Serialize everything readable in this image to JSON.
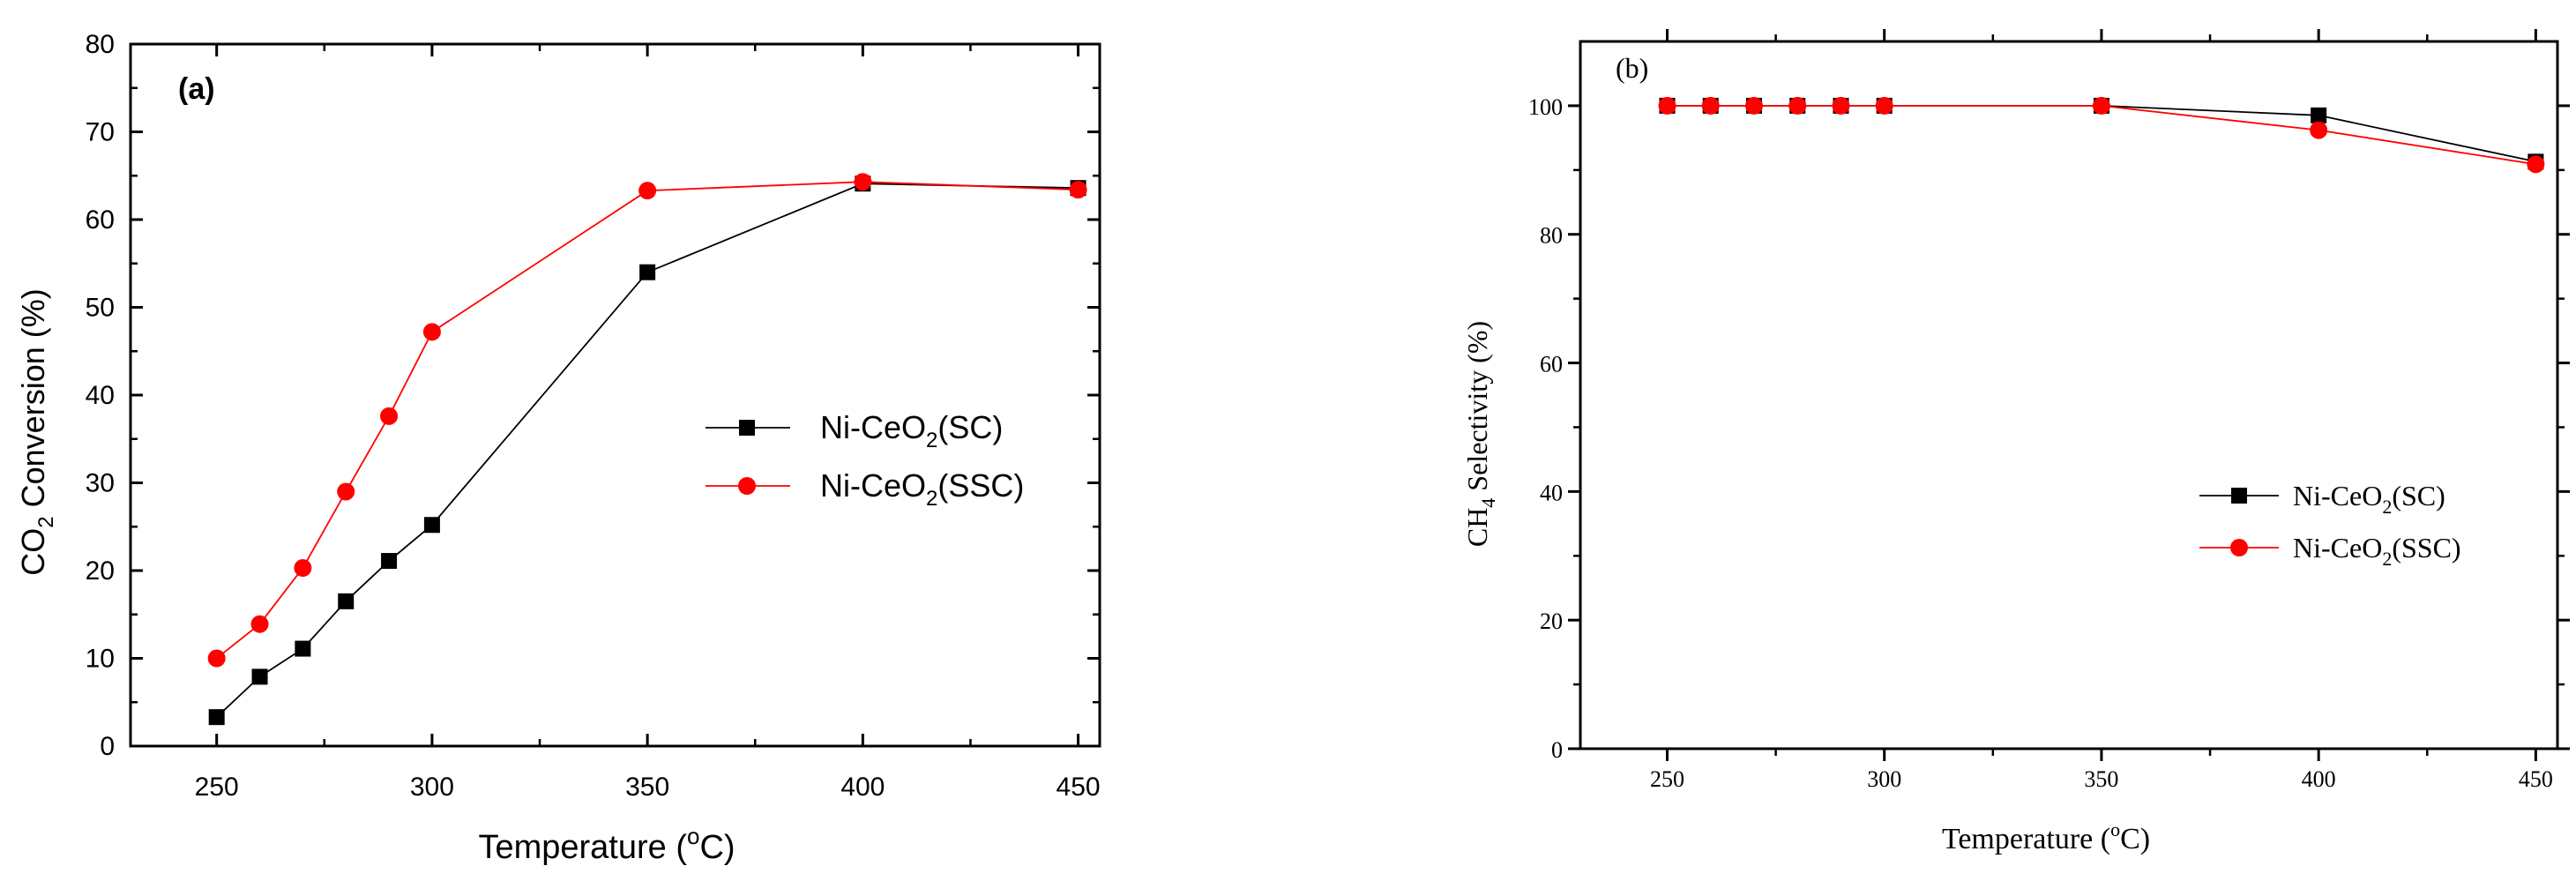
{
  "colors": {
    "sc": "#000000",
    "ssc": "#ff0000"
  },
  "chart_data": [
    {
      "type": "line",
      "panel_label": "(a)",
      "xlabel_text": "Temperature (",
      "xlabel_sup": "o",
      "xlabel_end": "C)",
      "ylabel_pre": "CO",
      "ylabel_sub": "2",
      "ylabel_post": " Conversion (%)",
      "xlim": [
        230,
        455
      ],
      "ylim": [
        0,
        80
      ],
      "xticks": [
        250,
        300,
        350,
        400,
        450
      ],
      "yticks": [
        0,
        10,
        20,
        30,
        40,
        50,
        60,
        70,
        80
      ],
      "legend_position": "center-right",
      "series": [
        {
          "name": "Ni-CeO2(SC)",
          "name_pre": "Ni-CeO",
          "name_sub": "2",
          "name_post": "(SC)",
          "marker": "square",
          "color": "#000000",
          "x": [
            250,
            260,
            270,
            280,
            290,
            300,
            350,
            400,
            450
          ],
          "y": [
            3.3,
            7.9,
            11.1,
            16.5,
            21.1,
            25.2,
            54.0,
            64.1,
            63.6
          ]
        },
        {
          "name": "Ni-CeO2(SSC)",
          "name_pre": "Ni-CeO",
          "name_sub": "2",
          "name_post": "(SSC)",
          "marker": "circle",
          "color": "#ff0000",
          "x": [
            250,
            260,
            270,
            280,
            290,
            300,
            350,
            400,
            450
          ],
          "y": [
            10.0,
            13.9,
            20.3,
            29.0,
            37.6,
            47.2,
            63.3,
            64.3,
            63.4
          ]
        }
      ]
    },
    {
      "type": "line",
      "panel_label": "(b)",
      "xlabel_text": "Temperature (",
      "xlabel_sup": "o",
      "xlabel_end": "C)",
      "ylabel_pre": "CH",
      "ylabel_sub": "4",
      "ylabel_post": " Selectivity (%)",
      "xlim": [
        230,
        455
      ],
      "ylim": [
        0,
        110
      ],
      "xticks": [
        250,
        300,
        350,
        400,
        450
      ],
      "yticks": [
        0,
        20,
        40,
        60,
        80,
        100
      ],
      "legend_position": "lower-right",
      "series": [
        {
          "name": "Ni-CeO2(SC)",
          "name_pre": "Ni-CeO",
          "name_sub": "2",
          "name_post": "(SC)",
          "marker": "square",
          "color": "#000000",
          "x": [
            250,
            260,
            270,
            280,
            290,
            300,
            350,
            400,
            450
          ],
          "y": [
            100,
            100,
            100,
            100,
            100,
            100,
            100,
            98.5,
            91.3
          ]
        },
        {
          "name": "Ni-CeO2(SSC)",
          "name_pre": "Ni-CeO",
          "name_sub": "2",
          "name_post": "(SSC)",
          "marker": "circle",
          "color": "#ff0000",
          "x": [
            250,
            260,
            270,
            280,
            290,
            300,
            350,
            400,
            450
          ],
          "y": [
            100,
            100,
            100,
            100,
            100,
            100,
            100,
            96.2,
            90.9
          ]
        }
      ]
    }
  ]
}
